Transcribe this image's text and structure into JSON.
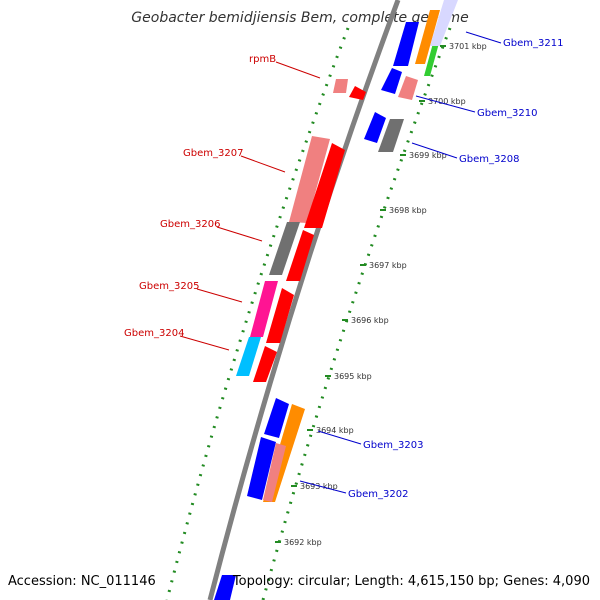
{
  "title": "Geobacter bemidjiensis Bem, complete genome",
  "footer": {
    "accession": "Accession: NC_011146",
    "topology": "Topology: circular; Length: 4,615,150 bp; Genes: 4,090"
  },
  "colors": {
    "forward_label": "#0000cc",
    "reverse_label": "#cc0000",
    "backbone": "#808080",
    "ruler": "#228b22",
    "red_gene": "#ff0000",
    "pink_gene": "#f08080",
    "gray_gene": "#707070",
    "magenta_gene": "#ff1493",
    "cyan_gene": "#00bfff",
    "blue_gene": "#0000ff",
    "orange_gene": "#ff8c00",
    "green_gene": "#32cd32"
  },
  "ruler_labels": [
    "3701 kbp",
    "3700 kbp",
    "3699 kbp",
    "3698 kbp",
    "3697 kbp",
    "3696 kbp",
    "3695 kbp",
    "3694 kbp",
    "3693 kbp",
    "3692 kbp"
  ],
  "reverse_gene_labels": [
    "rpmB",
    "Gbem_3207",
    "Gbem_3206",
    "Gbem_3205",
    "Gbem_3204"
  ],
  "forward_gene_labels": [
    "Gbem_3211",
    "Gbem_3210",
    "Gbem_3208",
    "Gbem_3203",
    "Gbem_3202"
  ]
}
